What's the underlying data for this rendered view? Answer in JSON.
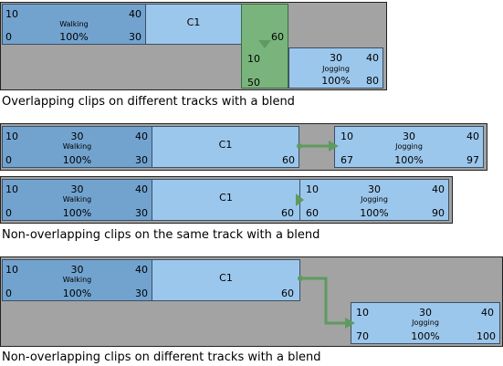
{
  "colors": {
    "panel_bg": "#a3a3a3",
    "clip_dark": "#72a3cf",
    "clip_light": "#9cc7ec",
    "blend_green": "#79b47c",
    "arrow_green": "#5f9a5f"
  },
  "diagram1": {
    "walking": {
      "start": "0",
      "mid": "30",
      "end": "40",
      "name": "Walking",
      "pct": "100%",
      "out": "30"
    },
    "c1": {
      "label": "C1",
      "end": "60"
    },
    "blend": {
      "start": "10",
      "end": "50"
    },
    "jogging": {
      "mid": "30",
      "end": "40",
      "name": "Jogging",
      "pct": "100%",
      "out": "80"
    },
    "tl": "10",
    "caption": "Overlapping clips on different tracks with a blend"
  },
  "diagram2": {
    "walking": {
      "tl": "10",
      "mid": "30",
      "end": "40",
      "name": "Walking",
      "start": "0",
      "pct": "100%",
      "out": "30"
    },
    "c1": {
      "label": "C1",
      "end": "60"
    },
    "jogging": {
      "tl": "10",
      "mid": "30",
      "end": "40",
      "name": "Jogging",
      "start": "67",
      "pct": "100%",
      "out": "97"
    }
  },
  "diagram3": {
    "walking": {
      "tl": "10",
      "mid": "30",
      "end": "40",
      "name": "Walking",
      "start": "0",
      "pct": "100%",
      "out": "30"
    },
    "c1": {
      "label": "C1",
      "end": "60"
    },
    "jogging": {
      "tl": "10",
      "mid": "30",
      "end": "40",
      "name": "Jogging",
      "start": "60",
      "pct": "100%",
      "out": "90"
    },
    "caption": "Non-overlapping clips on the same track with a blend"
  },
  "diagram4": {
    "walking": {
      "tl": "10",
      "mid": "30",
      "end": "40",
      "name": "Walking",
      "start": "0",
      "pct": "100%",
      "out": "30"
    },
    "c1": {
      "label": "C1",
      "end": "60"
    },
    "jogging": {
      "tl": "10",
      "mid": "30",
      "end": "40",
      "name": "Jogging",
      "start": "70",
      "pct": "100%",
      "out": "100"
    },
    "caption": "Non-overlapping clips on different tracks with a blend"
  }
}
